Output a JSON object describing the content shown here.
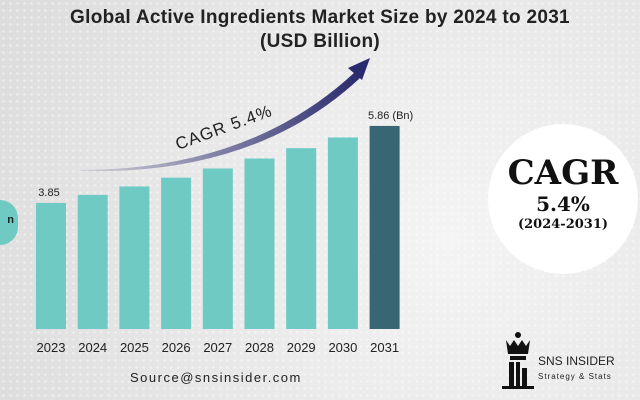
{
  "title_line1": "Global Active Ingredients Market Size by 2024 to 2031",
  "title_line2": "(USD Billion)",
  "chart_data": {
    "type": "bar",
    "title": "Global Active Ingredients Market Size by 2024 to 2031 (USD Billion)",
    "categories": [
      "2023",
      "2024",
      "2025",
      "2026",
      "2027",
      "2028",
      "2029",
      "2030",
      "2031"
    ],
    "values": [
      3.85,
      4.06,
      4.28,
      4.51,
      4.75,
      5.01,
      5.28,
      5.56,
      5.86
    ],
    "data_labels": {
      "first": "3.85",
      "last": "5.86 (Bn)"
    },
    "annotation": "CAGR 5.4%",
    "colors": {
      "bar": "#6ecac3",
      "highlight_bar": "#386673",
      "arrow": "#2a2a6e"
    },
    "grid": false
  },
  "left_badge_text": "n",
  "cagr_badge": {
    "label": "CAGR",
    "value": "5.4%",
    "period": "(2024-2031)"
  },
  "source": "Source@snsinsider.com",
  "logo": {
    "name": "SNS INSIDER",
    "tagline": "Strategy & Stats"
  }
}
